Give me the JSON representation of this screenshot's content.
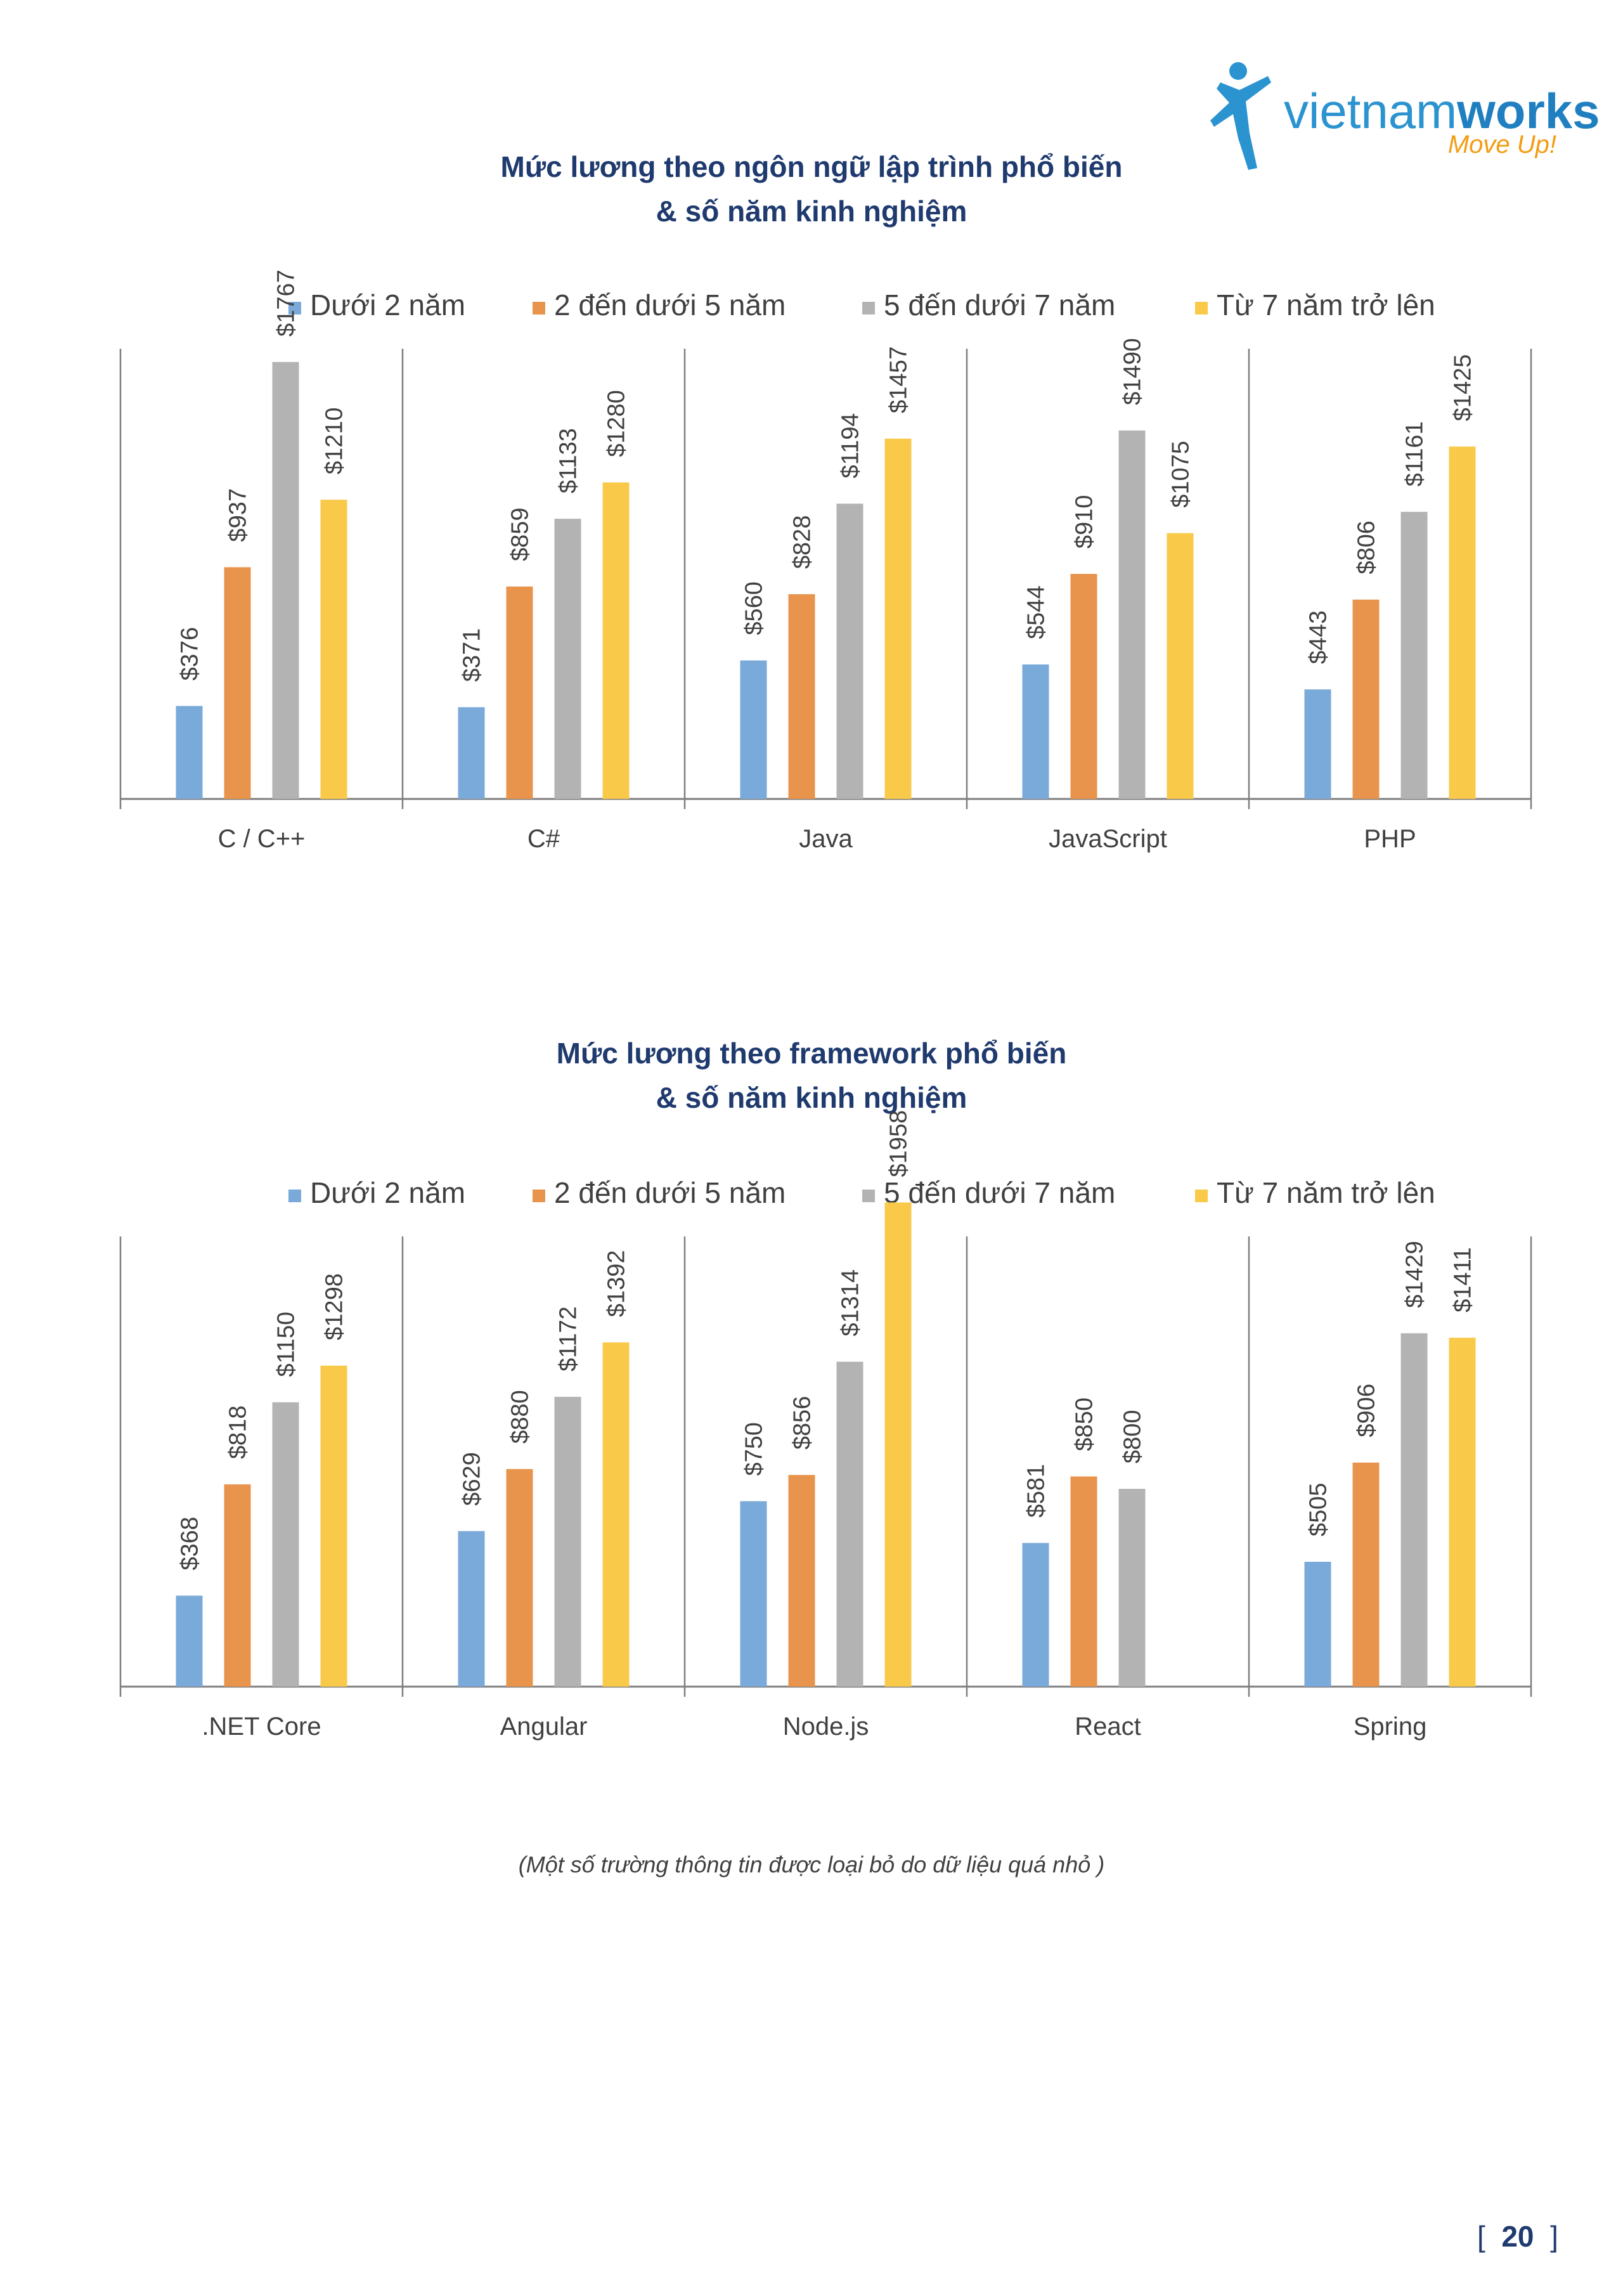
{
  "logo": {
    "word_light": "vietnam",
    "word_bold": "works",
    "tagline": "Move Up!"
  },
  "colors": {
    "under2": "#7aaad9",
    "2to5": "#e8944c",
    "5to7": "#b3b3b3",
    "over7": "#f9c94a",
    "axis": "#7f7f7f",
    "title": "#1f3a6e"
  },
  "note": "(Một số trường thông tin được loại bỏ do dữ liệu quá nhỏ )",
  "page": {
    "open": "[",
    "number": "20",
    "close": "]"
  },
  "chart_data": [
    {
      "type": "bar",
      "title_line1": "Mức lương theo ngôn ngữ lập trình phổ biến",
      "title_line2": "& số năm kinh nghiệm",
      "legend_position": "top",
      "ylim": [
        0,
        2000
      ],
      "categories": [
        "C / C++",
        "C#",
        "Java",
        "JavaScript",
        "PHP"
      ],
      "series": [
        {
          "name": "Dưới 2 năm",
          "color": "#7aaad9",
          "values": [
            376,
            371,
            560,
            544,
            443
          ],
          "labels": [
            "$376",
            "$371",
            "$560",
            "$544",
            "$443"
          ]
        },
        {
          "name": "2 đến dưới 5 năm",
          "color": "#e8944c",
          "values": [
            937,
            859,
            828,
            910,
            806
          ],
          "labels": [
            "$937",
            "$859",
            "$828",
            "$910",
            "$806"
          ]
        },
        {
          "name": "5 đến dưới 7 năm",
          "color": "#b3b3b3",
          "values": [
            1767,
            1133,
            1194,
            1490,
            1161
          ],
          "labels": [
            "$1767",
            "$1133",
            "$1194",
            "$1490",
            "$1161"
          ]
        },
        {
          "name": "Từ 7 năm trở lên",
          "color": "#f9c94a",
          "values": [
            1210,
            1280,
            1457,
            1075,
            1425
          ],
          "labels": [
            "$1210",
            "$1280",
            "$1457",
            "$1075",
            "$1425"
          ]
        }
      ]
    },
    {
      "type": "bar",
      "title_line1": "Mức lương theo framework phổ biến",
      "title_line2": "& số năm kinh nghiệm",
      "legend_position": "top",
      "ylim": [
        0,
        2000
      ],
      "categories": [
        ".NET Core",
        "Angular",
        "Node.js",
        "React",
        "Spring"
      ],
      "series": [
        {
          "name": "Dưới 2 năm",
          "color": "#7aaad9",
          "values": [
            368,
            629,
            750,
            581,
            505
          ],
          "labels": [
            "$368",
            "$629",
            "$750",
            "$581",
            "$505"
          ]
        },
        {
          "name": "2 đến dưới 5 năm",
          "color": "#e8944c",
          "values": [
            818,
            880,
            856,
            850,
            906
          ],
          "labels": [
            "$818",
            "$880",
            "$856",
            "$850",
            "$906"
          ]
        },
        {
          "name": "5 đến dưới 7 năm",
          "color": "#b3b3b3",
          "values": [
            1150,
            1172,
            1314,
            800,
            1429
          ],
          "labels": [
            "$1150",
            "$1172",
            "$1314",
            "$800",
            "$1429"
          ]
        },
        {
          "name": "Từ 7 năm trở lên",
          "color": "#f9c94a",
          "values": [
            1298,
            1392,
            1958,
            null,
            1411
          ],
          "labels": [
            "$1298",
            "$1392",
            "$1958",
            "",
            "$1411"
          ]
        }
      ]
    }
  ]
}
